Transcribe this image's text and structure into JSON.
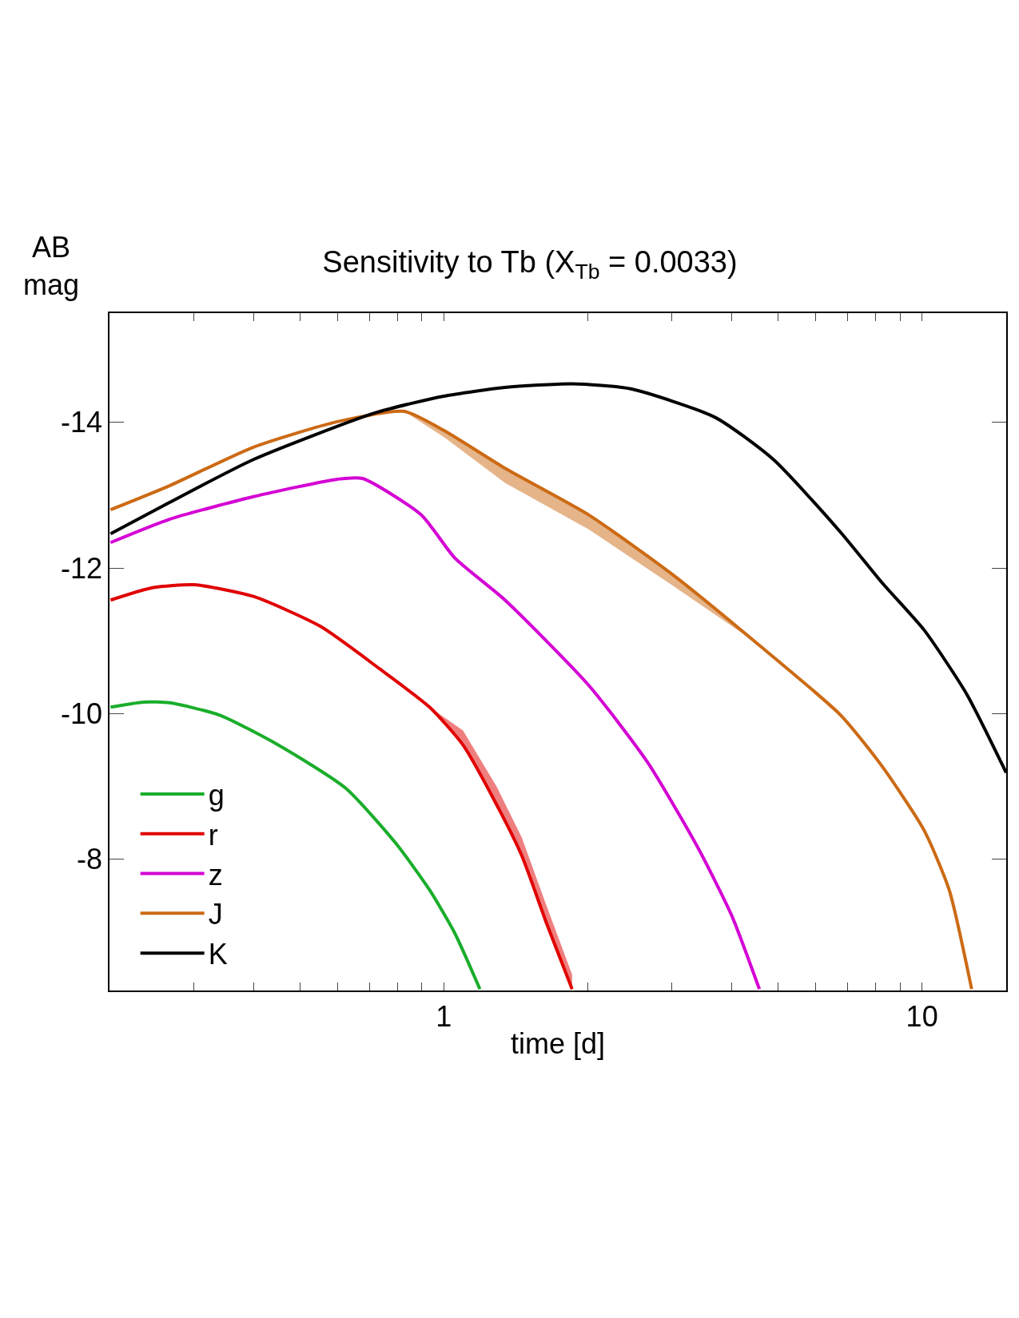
{
  "chart_data": {
    "type": "line",
    "title": "Sensitivity to Tb (X$_{Tb}$ = 0.0033)",
    "xlabel": "time [d]",
    "ylabel": "AB mag",
    "log": "x",
    "xlim": [
      0.2,
      15
    ],
    "ylim": [
      -6.2,
      -15.5
    ],
    "xticks": [
      {
        "value": 0.2,
        "label": null
      },
      {
        "value": 0.3,
        "label": null
      },
      {
        "value": 0.4,
        "label": null
      },
      {
        "value": 0.5,
        "label": null
      },
      {
        "value": 0.6,
        "label": null
      },
      {
        "value": 0.7,
        "label": null
      },
      {
        "value": 0.8,
        "label": null
      },
      {
        "value": 0.9,
        "label": null
      },
      1,
      {
        "value": 2,
        "label": null
      },
      {
        "value": 3,
        "label": null
      },
      {
        "value": 4,
        "label": null
      },
      {
        "value": 5,
        "label": null
      },
      {
        "value": 6,
        "label": null
      },
      {
        "value": 7,
        "label": null
      },
      {
        "value": 8,
        "label": null
      },
      {
        "value": 9,
        "label": null
      },
      10
    ],
    "yticks": [
      -14,
      -12,
      -10,
      -8
    ],
    "legend": "bottom left",
    "marker": "none",
    "line_style": "solid",
    "series": [
      {
        "name": "g",
        "color": "#1aad2a",
        "x": [
          0.201,
          0.236,
          0.267,
          0.34,
          0.451,
          0.623,
          0.794,
          0.934,
          1.054,
          1.19
        ],
        "values": [
          -10.09,
          -10.16,
          -10.15,
          -9.98,
          -9.57,
          -8.98,
          -8.22,
          -7.58,
          -6.99,
          -6.22
        ]
      },
      {
        "name": "r",
        "color": "#e00000",
        "x": [
          0.201,
          0.246,
          0.301,
          0.4,
          0.552,
          0.733,
          0.934,
          1.097,
          1.29,
          1.456,
          1.643,
          1.855
        ],
        "values": [
          -11.56,
          -11.73,
          -11.77,
          -11.61,
          -11.2,
          -10.62,
          -10.09,
          -9.57,
          -8.75,
          -8.05,
          -7.11,
          -6.22
        ],
        "lower": [
          -11.56,
          -11.73,
          -11.77,
          -11.61,
          -11.2,
          -10.62,
          -10.09,
          -9.77,
          -9.0,
          -8.3,
          -7.35,
          -6.42
        ],
        "upper": [
          -11.56,
          -11.73,
          -11.77,
          -11.61,
          -11.2,
          -10.62,
          -10.09,
          -9.57,
          -8.75,
          -8.05,
          -7.11,
          -6.22
        ]
      },
      {
        "name": "z",
        "color": "#d400d4",
        "x": [
          0.201,
          0.267,
          0.4,
          0.599,
          0.676,
          0.897,
          1.054,
          1.343,
          2.01,
          2.67,
          3.4,
          4.0,
          4.57
        ],
        "values": [
          -12.35,
          -12.67,
          -12.98,
          -13.22,
          -13.23,
          -12.73,
          -12.14,
          -11.56,
          -10.39,
          -9.33,
          -8.16,
          -7.23,
          -6.22
        ]
      },
      {
        "name": "J",
        "color": "#cc6a14",
        "x": [
          0.201,
          0.267,
          0.4,
          0.599,
          0.827,
          1.0,
          1.343,
          2.01,
          3.01,
          4.51,
          6.76,
          8.27,
          10.1,
          11.4,
          12.7
        ],
        "values": [
          -12.8,
          -13.13,
          -13.66,
          -14.01,
          -14.15,
          -13.89,
          -13.37,
          -12.73,
          -11.91,
          -10.97,
          -9.98,
          -9.27,
          -8.4,
          -7.58,
          -6.22
        ],
        "lower": [
          -12.8,
          -13.13,
          -13.66,
          -14.01,
          -14.15,
          -13.89,
          -13.37,
          -12.73,
          -11.91,
          -10.97,
          -9.98,
          -9.27,
          -8.4,
          -7.58,
          -6.22
        ],
        "upper": [
          -12.8,
          -13.13,
          -13.66,
          -14.01,
          -14.15,
          -13.8,
          -13.17,
          -12.53,
          -11.76,
          -10.97,
          -9.98,
          -9.27,
          -8.4,
          -7.58,
          -6.22
        ]
      },
      {
        "name": "K",
        "color": "#000000",
        "x": [
          0.201,
          0.267,
          0.4,
          0.718,
          1.0,
          1.343,
          1.855,
          2.46,
          3.69,
          4.89,
          6.76,
          8.27,
          10.1,
          12.4,
          15.0
        ],
        "values": [
          -12.47,
          -12.9,
          -13.49,
          -14.13,
          -14.36,
          -14.48,
          -14.53,
          -14.46,
          -14.07,
          -13.49,
          -12.49,
          -11.79,
          -11.15,
          -10.27,
          -9.19
        ]
      }
    ]
  }
}
